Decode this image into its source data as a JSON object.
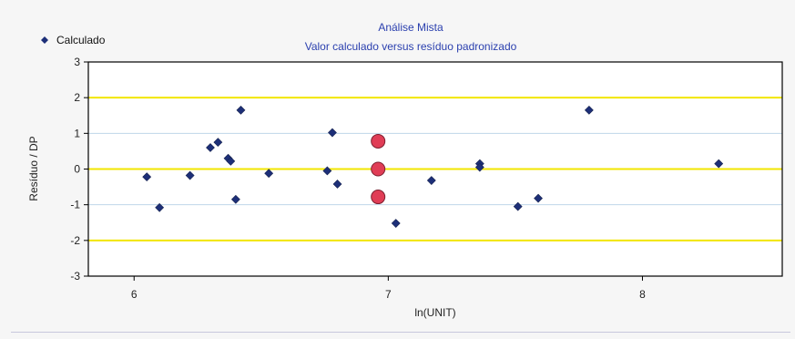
{
  "chart_data": {
    "type": "scatter",
    "title": "Análise Mista",
    "subtitle": "Valor calculado versus resíduo padronizado",
    "xlabel": "ln(UNIT)",
    "ylabel": "Resíduo / DP",
    "xlim": [
      5.82,
      8.55
    ],
    "ylim": [
      -3,
      3
    ],
    "x_ticks": [
      6,
      7,
      8
    ],
    "y_ticks": [
      3,
      2,
      1,
      0,
      -1,
      -2,
      -3
    ],
    "legend_position": "top-left",
    "reference_lines": [
      {
        "y": 2,
        "color": "#f2e600"
      },
      {
        "y": 0,
        "color": "#f2e600"
      },
      {
        "y": -2,
        "color": "#f2e600"
      }
    ],
    "gridlines": [
      {
        "y": 1,
        "color": "#bfd6ea"
      },
      {
        "y": -1,
        "color": "#bfd6ea"
      }
    ],
    "series": [
      {
        "name": "Calculado",
        "color": "#1d2f78",
        "marker": "diamond",
        "points": [
          [
            6.05,
            -0.22
          ],
          [
            6.1,
            -1.08
          ],
          [
            6.22,
            -0.18
          ],
          [
            6.3,
            0.6
          ],
          [
            6.33,
            0.75
          ],
          [
            6.37,
            0.3
          ],
          [
            6.38,
            0.22
          ],
          [
            6.4,
            -0.85
          ],
          [
            6.42,
            1.65
          ],
          [
            6.53,
            -0.12
          ],
          [
            6.76,
            -0.05
          ],
          [
            6.78,
            1.02
          ],
          [
            6.8,
            -0.42
          ],
          [
            7.03,
            -1.52
          ],
          [
            7.17,
            -0.32
          ],
          [
            7.36,
            0.15
          ],
          [
            7.36,
            0.05
          ],
          [
            7.51,
            -1.05
          ],
          [
            7.59,
            -0.82
          ],
          [
            7.79,
            1.65
          ],
          [
            8.3,
            0.15
          ]
        ]
      },
      {
        "color": "#e03d56",
        "marker": "circle",
        "points": [
          [
            6.96,
            0.78
          ],
          [
            6.96,
            0
          ],
          [
            6.96,
            -0.78
          ]
        ]
      }
    ]
  }
}
